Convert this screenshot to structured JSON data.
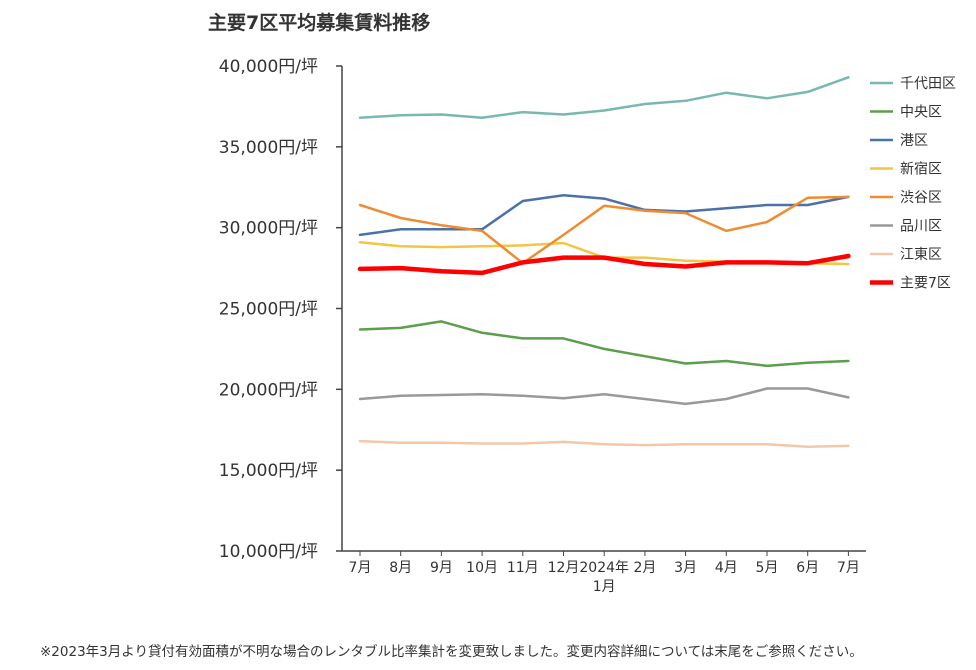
{
  "chart_data": {
    "type": "line",
    "title": "主要7区平均募集賃料推移",
    "categories": [
      "7月",
      "8月",
      "9月",
      "10月",
      "11月",
      "12月",
      "2024年1月",
      "2月",
      "3月",
      "4月",
      "5月",
      "6月",
      "7月"
    ],
    "category_lines": [
      [
        "7月"
      ],
      [
        "8月"
      ],
      [
        "9月"
      ],
      [
        "10月"
      ],
      [
        "11月"
      ],
      [
        "12月"
      ],
      [
        "2024年",
        "1月"
      ],
      [
        "2月"
      ],
      [
        "3月"
      ],
      [
        "4月"
      ],
      [
        "5月"
      ],
      [
        "6月"
      ],
      [
        "7月"
      ]
    ],
    "ylim": [
      10000,
      40000
    ],
    "yticks": [
      {
        "value": 40000,
        "label": "40,000円/坪"
      },
      {
        "value": 35000,
        "label": "35,000円/坪"
      },
      {
        "value": 30000,
        "label": "30,000円/坪"
      },
      {
        "value": 25000,
        "label": "25,000円/坪"
      },
      {
        "value": 20000,
        "label": "20,000円/坪"
      },
      {
        "value": 15000,
        "label": "15,000円/坪"
      },
      {
        "value": 10000,
        "label": "10,000円/坪"
      }
    ],
    "series": [
      {
        "name": "千代田区",
        "color": "#79b8b1",
        "width": 2.5,
        "values": [
          36800,
          36950,
          37000,
          36800,
          37150,
          37000,
          37250,
          37650,
          37850,
          38350,
          38000,
          38400,
          39300
        ]
      },
      {
        "name": "中央区",
        "color": "#5b9e4b",
        "width": 2.5,
        "values": [
          23700,
          23800,
          24200,
          23500,
          23150,
          23150,
          22500,
          22050,
          21600,
          21750,
          21450,
          21650,
          21750
        ]
      },
      {
        "name": "港区",
        "color": "#4a72a8",
        "width": 2.5,
        "values": [
          29550,
          29900,
          29900,
          29900,
          31650,
          32000,
          31800,
          31100,
          31000,
          31200,
          31400,
          31400,
          31900
        ]
      },
      {
        "name": "新宿区",
        "color": "#f0c644",
        "width": 2.5,
        "values": [
          29100,
          28850,
          28800,
          28850,
          28900,
          29050,
          28150,
          28150,
          27950,
          27900,
          27900,
          27800,
          27750
        ]
      },
      {
        "name": "渋谷区",
        "color": "#ef8c32",
        "width": 2.5,
        "values": [
          31400,
          30600,
          30150,
          29800,
          27800,
          29550,
          31350,
          31050,
          30900,
          29800,
          30350,
          31850,
          31900
        ]
      },
      {
        "name": "品川区",
        "color": "#999999",
        "width": 2.5,
        "values": [
          19400,
          19600,
          19650,
          19700,
          19600,
          19450,
          19700,
          19400,
          19100,
          19400,
          20050,
          20050,
          19500
        ]
      },
      {
        "name": "江東区",
        "color": "#f3c7a9",
        "width": 2.5,
        "values": [
          16800,
          16700,
          16700,
          16650,
          16650,
          16750,
          16600,
          16550,
          16600,
          16600,
          16600,
          16450,
          16500
        ]
      },
      {
        "name": "主要7区",
        "color": "#ff0000",
        "width": 4.5,
        "values": [
          27450,
          27500,
          27300,
          27200,
          27850,
          28150,
          28150,
          27750,
          27600,
          27850,
          27850,
          27800,
          28250
        ]
      }
    ],
    "legend_position": "right",
    "grid": false
  },
  "footnote": "※2023年3月より貸付有効面積が不明な場合のレンタブル比率集計を変更致しました。変更内容詳細については末尾をご参照ください。"
}
